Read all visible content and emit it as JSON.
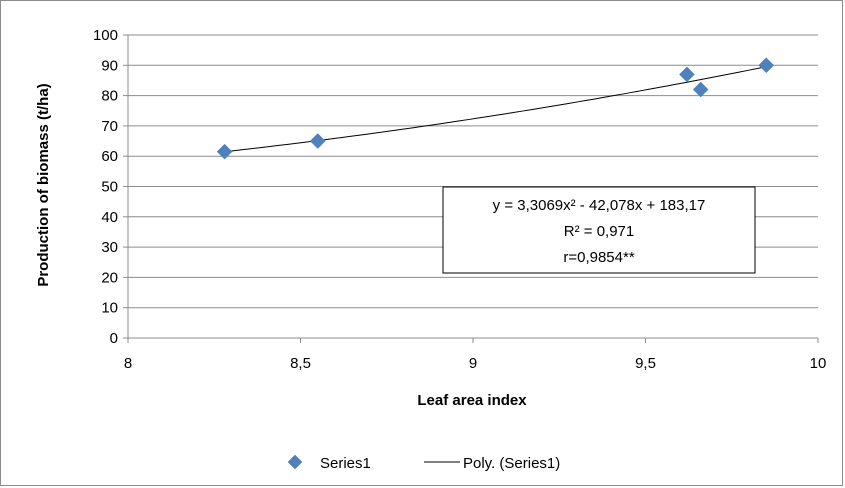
{
  "chart_data": {
    "type": "scatter",
    "title": "",
    "xlabel": "Leaf area index",
    "ylabel": "Production of biomass (t/ha)",
    "xlim": [
      8,
      10
    ],
    "ylim": [
      0,
      100
    ],
    "x_ticks": [
      8,
      8.5,
      9,
      9.5,
      10
    ],
    "x_tick_labels": [
      "8",
      "8,5",
      "9",
      "9,5",
      "10"
    ],
    "y_ticks": [
      0,
      10,
      20,
      30,
      40,
      50,
      60,
      70,
      80,
      90,
      100
    ],
    "y_tick_labels": [
      "0",
      "10",
      "20",
      "30",
      "40",
      "50",
      "60",
      "70",
      "80",
      "90",
      "100"
    ],
    "grid": "horizontal",
    "legend_position": "bottom",
    "series": [
      {
        "name": "Series1",
        "marker": "diamond",
        "color": "#4f81bd",
        "x": [
          8.28,
          8.55,
          9.62,
          9.66,
          9.85
        ],
        "y": [
          61.5,
          65,
          87,
          82,
          90
        ]
      }
    ],
    "trendline": {
      "name": "Poly. (Series1)",
      "type": "polynomial",
      "order": 2,
      "coefficients": [
        3.3069,
        -42.078,
        183.17
      ],
      "x_range": [
        8.28,
        9.85
      ],
      "color": "#000000"
    },
    "annotation": {
      "lines": [
        "y = 3,3069x² - 42,078x + 183,17",
        "R² = 0,971",
        "r=0,9854**"
      ]
    }
  }
}
